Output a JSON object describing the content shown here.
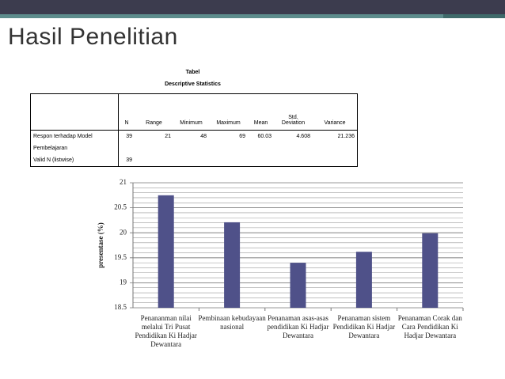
{
  "title": "Hasil Penelitian",
  "table": {
    "caption": "Tabel",
    "subtitle": "Descriptive Statistics",
    "header": [
      null,
      "N",
      "Range",
      "Minimum",
      "Maximum",
      "Mean",
      "Std. Deviation",
      "Variance"
    ],
    "rows": [
      [
        "Respon terhadap Model Pembelajaran",
        39,
        21,
        48,
        69,
        60.03,
        4.608,
        21.236
      ],
      [
        "Valid N (listwise)",
        39,
        null,
        null,
        null,
        null,
        null,
        null
      ]
    ]
  },
  "chart_data": {
    "type": "bar",
    "y_label": "presentase (%)",
    "categories": [
      "Penananman nilai melalui Tri Pusat Pendidikan Ki Hadjar Dewantara",
      "Pembinaan kebudayaan nasional",
      "Penanaman asas-asas pendidikan Ki Hadjar Dewantara",
      "Penanaman sistem Pendidikan Ki Hadjar Dewantara",
      "Penanaman Corak dan Cara Pendidikan Ki Hadjar Dewantara"
    ],
    "values": [
      20.75,
      20.21,
      19.4,
      19.62,
      19.99
    ],
    "color": "#4f5189",
    "ylim": [
      18.5,
      21
    ],
    "yticks": [
      18.5,
      19,
      19.5,
      20,
      20.5,
      21
    ],
    "grid": true,
    "minor_grid_step": 0.1
  }
}
